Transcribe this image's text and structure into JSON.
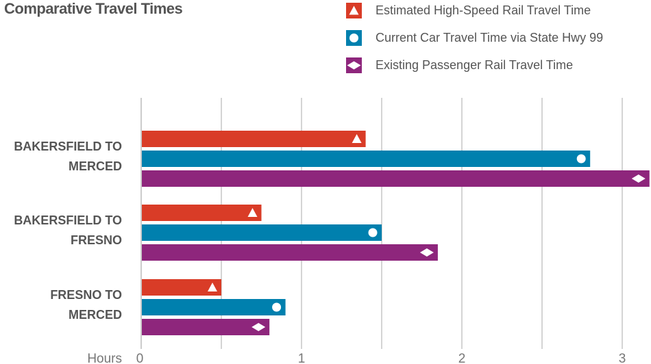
{
  "chart_data": {
    "type": "bar",
    "orientation": "horizontal",
    "title": "Comparative Travel Times",
    "xlabel": "Hours",
    "xlim": [
      0,
      3.17
    ],
    "xticks": [
      "0",
      "1",
      "2",
      "3"
    ],
    "grid": true,
    "legend_placement": "top-right",
    "categories": [
      "BAKERSFIELD TO MERCED",
      "BAKERSFIELD TO FRESNO",
      "FRESNO TO MERCED"
    ],
    "category_lines": [
      [
        "BAKERSFIELD TO",
        "MERCED"
      ],
      [
        "BAKERSFIELD TO",
        "FRESNO"
      ],
      [
        "FRESNO TO",
        "MERCED"
      ]
    ],
    "series": [
      {
        "name": "Estimated High-Speed Rail Travel Time",
        "color": "#d93c27",
        "marker": "triangle",
        "values": [
          1.4,
          0.75,
          0.5
        ]
      },
      {
        "name": "Current Car Travel Time via State Hwy 99",
        "color": "#0080ae",
        "marker": "circle",
        "values": [
          2.8,
          1.5,
          0.9
        ]
      },
      {
        "name": "Existing Passenger Rail Travel Time",
        "color": "#8e267c",
        "marker": "diamond",
        "values": [
          3.17,
          1.85,
          0.8
        ]
      }
    ]
  }
}
